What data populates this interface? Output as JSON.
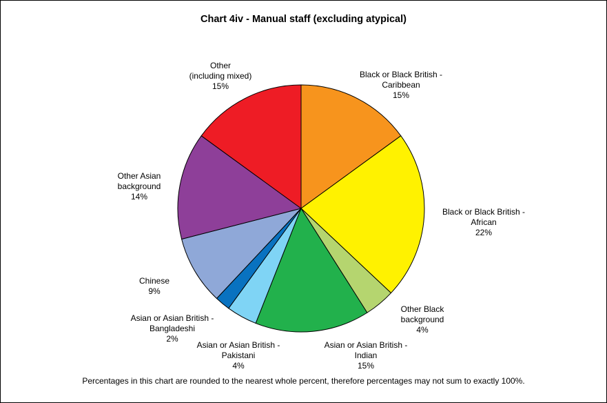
{
  "chart_data": {
    "type": "pie",
    "title": "Chart 4iv - Manual staff (excluding atypical)",
    "footnote": "Percentages in this chart are rounded to the nearest whole percent, therefore percentages may not sum to exactly 100%.",
    "slices": [
      {
        "lines": [
          "Black or Black British -",
          "Caribbean"
        ],
        "value": 15,
        "pct_label": "15%",
        "color": "#F7941D"
      },
      {
        "lines": [
          "Black or Black British -",
          "African"
        ],
        "value": 22,
        "pct_label": "22%",
        "color": "#FFF200"
      },
      {
        "lines": [
          "Other Black",
          "background"
        ],
        "value": 4,
        "pct_label": "4%",
        "color": "#B5D56F"
      },
      {
        "lines": [
          "Asian or Asian British -",
          "Indian"
        ],
        "value": 15,
        "pct_label": "15%",
        "color": "#22B14C"
      },
      {
        "lines": [
          "Asian or Asian British -",
          "Pakistani"
        ],
        "value": 4,
        "pct_label": "4%",
        "color": "#7FD4F5"
      },
      {
        "lines": [
          "Asian or Asian British -",
          "Bangladeshi"
        ],
        "value": 2,
        "pct_label": "2%",
        "color": "#0972C0"
      },
      {
        "lines": [
          "Chinese"
        ],
        "value": 9,
        "pct_label": "9%",
        "color": "#8FA8D8"
      },
      {
        "lines": [
          "Other Asian",
          "background"
        ],
        "value": 14,
        "pct_label": "14%",
        "color": "#8E3F99"
      },
      {
        "lines": [
          "Other",
          "(including mixed)"
        ],
        "value": 15,
        "pct_label": "15%",
        "color": "#EE1C25"
      }
    ]
  }
}
